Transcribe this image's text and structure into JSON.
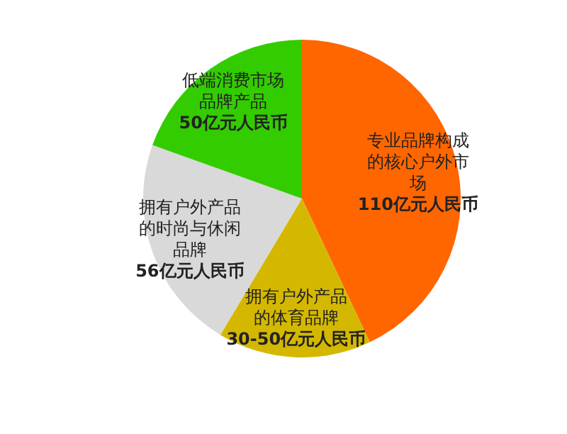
{
  "chart_data": {
    "type": "pie",
    "categories": [
      "专业品牌构成的核心户外市场",
      "拥有户外产品的体育品牌",
      "拥有户外产品的时尚与休闲品牌",
      "低端消费市场品牌产品"
    ],
    "values": [
      110,
      40,
      56,
      50
    ],
    "value_labels": [
      "110亿元人民币",
      "30-50亿元人民币",
      "56亿元人民币",
      "50亿元人民币"
    ],
    "colors": [
      "#ff6600",
      "#d4b800",
      "#d9d9d9",
      "#33cc00"
    ],
    "legend": false
  }
}
